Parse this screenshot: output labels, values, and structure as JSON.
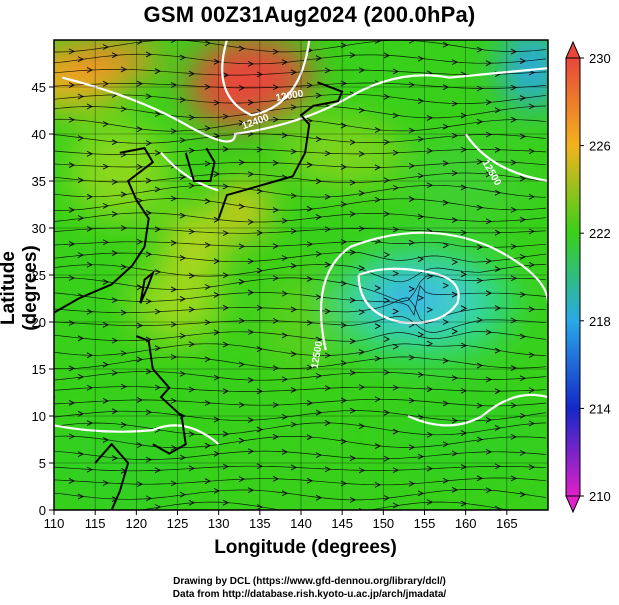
{
  "title": "GSM 00Z31Aug2024 (200.0hPa)",
  "xlabel": "Longitude (degrees)",
  "ylabel": "Latitude  (degrees)",
  "credits": [
    "Drawing by DCL (https://www.gfd-dennou.org/library/dcl/)",
    "Data from http://database.rish.kyoto-u.ac.jp/arch/jmadata/"
  ],
  "colors": {
    "c230": "#e8473a",
    "c226": "#f2b21e",
    "c222": "#38d01a",
    "c218": "#2aa8e8",
    "c214": "#1428c8",
    "c210": "#e020c8",
    "land": "#000000",
    "contour": "#ffffff"
  },
  "chart_data": {
    "type": "heatmap",
    "variable": "temperature with streamlines",
    "x_range": [
      110,
      170
    ],
    "y_range": [
      0,
      50
    ],
    "x_ticks": [
      110,
      115,
      120,
      125,
      130,
      135,
      140,
      145,
      150,
      155,
      160,
      165
    ],
    "y_ticks": [
      0,
      5,
      10,
      15,
      20,
      25,
      30,
      35,
      40,
      45
    ],
    "colorbar": {
      "min": 210,
      "max": 230,
      "tick_labels": [
        "230",
        "226",
        "222",
        "218",
        "214",
        "210"
      ]
    },
    "contour_labels": [
      "12400",
      "12000",
      "12500",
      "12500"
    ],
    "features": [
      {
        "label": "warm maximum",
        "lon": 134,
        "lat": 46,
        "value": 230
      },
      {
        "label": "cold low center",
        "lon": 154,
        "lat": 22.5,
        "value": 217
      },
      {
        "label": "cold corner",
        "lon": 168,
        "lat": 47,
        "value": 218
      }
    ]
  }
}
